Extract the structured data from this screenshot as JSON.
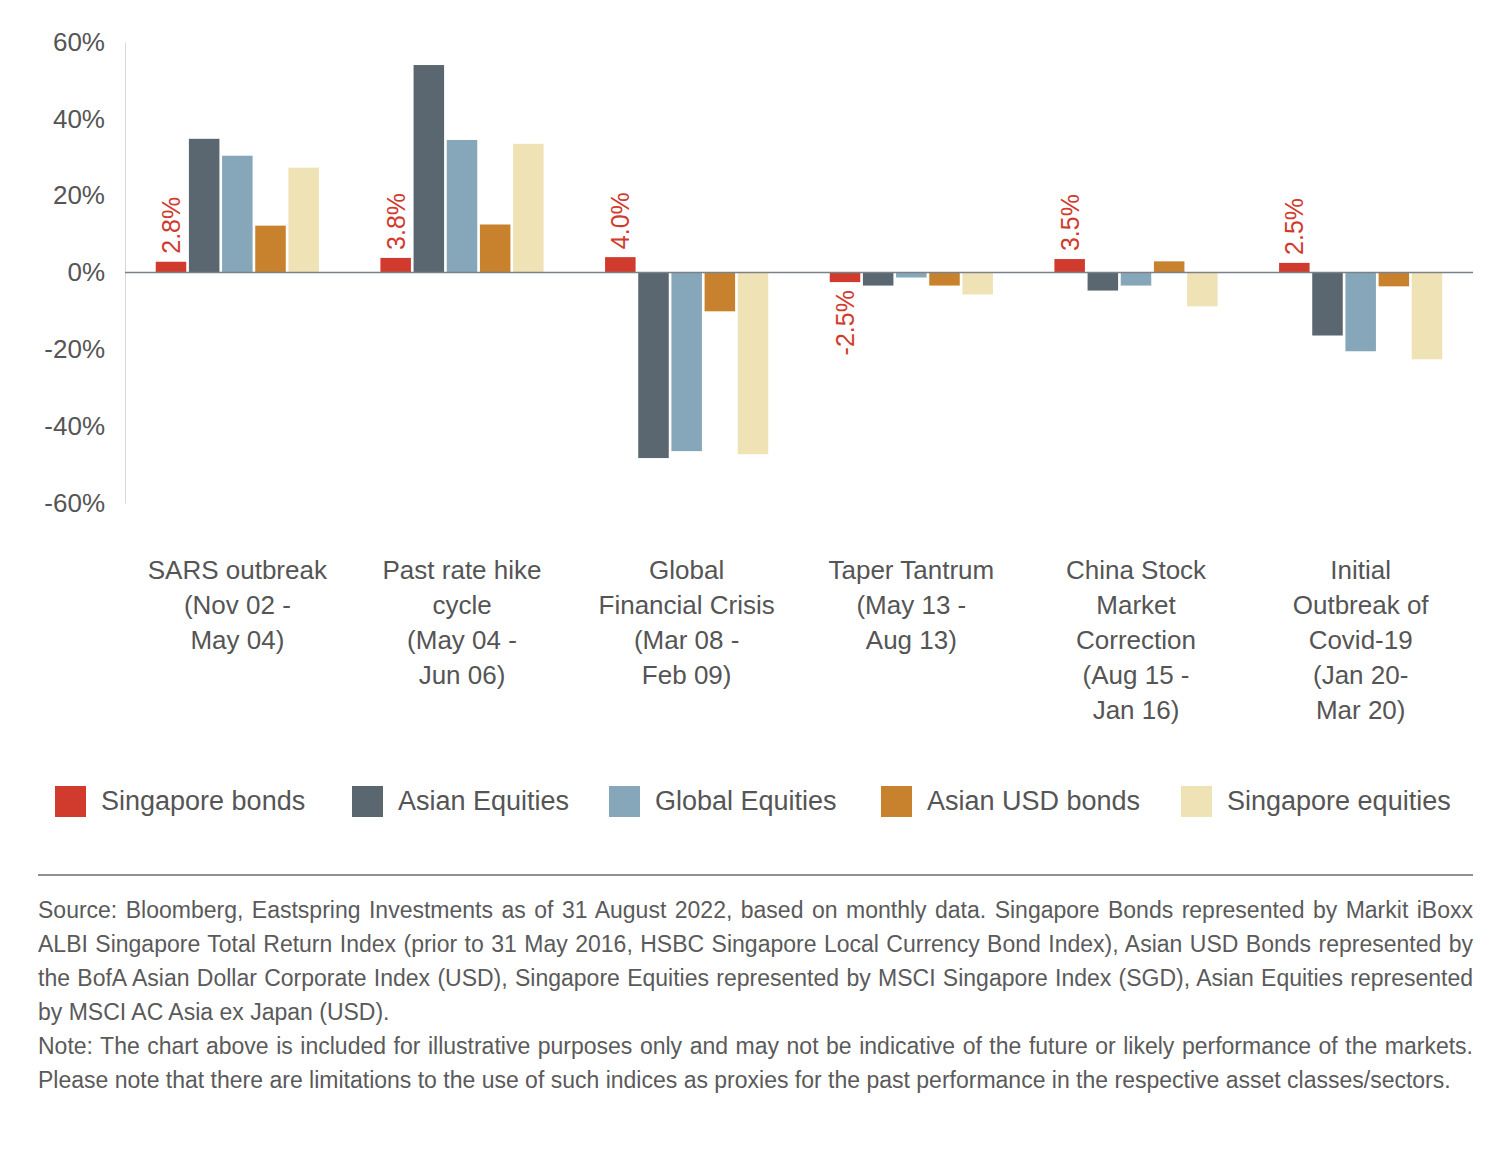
{
  "chart_data": {
    "type": "bar",
    "categories": [
      "SARS outbreak\n(Nov 02 -\nMay 04)",
      "Past rate hike\ncycle\n(May 04 -\nJun 06)",
      "Global\nFinancial Crisis\n(Mar 08 -\nFeb 09)",
      "Taper Tantrum\n(May 13 -\nAug 13)",
      "China Stock\nMarket\nCorrection\n(Aug 15 -\nJan 16)",
      "Initial\nOutbreak of\nCovid-19\n(Jan 20-\nMar 20)"
    ],
    "series": [
      {
        "name": "Singapore bonds",
        "color": "#d13b2e",
        "values": [
          2.8,
          3.8,
          4.0,
          -2.5,
          3.5,
          2.5
        ],
        "data_labels": true,
        "value_labels": [
          "2.8%",
          "3.8%",
          "4.0%",
          "-2.5%",
          "3.5%",
          "2.5%"
        ]
      },
      {
        "name": "Asian Equities",
        "color": "#5a6670",
        "values": [
          34.8,
          54.0,
          -48.3,
          -3.4,
          -4.7,
          -16.4
        ]
      },
      {
        "name": "Global Equities",
        "color": "#86a6b9",
        "values": [
          30.4,
          34.5,
          -46.5,
          -1.3,
          -3.4,
          -20.5
        ]
      },
      {
        "name": "Asian USD bonds",
        "color": "#c8822e",
        "values": [
          12.2,
          12.5,
          -10.1,
          -3.4,
          2.9,
          -3.6
        ]
      },
      {
        "name": "Singapore equities",
        "color": "#efe3b6",
        "values": [
          27.3,
          33.5,
          -47.3,
          -5.7,
          -8.8,
          -22.6
        ]
      }
    ],
    "ylim": [
      -60,
      60
    ],
    "yticks": [
      {
        "value": -60,
        "label": "-60%"
      },
      {
        "value": -40,
        "label": "-40%"
      },
      {
        "value": -20,
        "label": "-20%"
      },
      {
        "value": 0,
        "label": "0%"
      },
      {
        "value": 20,
        "label": "20%"
      },
      {
        "value": 40,
        "label": "40%"
      },
      {
        "value": 60,
        "label": "60%"
      }
    ],
    "grid": false,
    "legend": "bottom",
    "footnote": [
      "Source: Bloomberg, Eastspring Investments as of 31 August 2022, based on monthly data. Singapore Bonds represented by Markit iBoxx ALBI Singapore Total Return Index (prior to 31 May 2016, HSBC Singapore Local Currency Bond Index), Asian USD Bonds represented by the BofA Asian Dollar Corporate Index (USD), Singapore Equities represented by MSCI Singapore Index (SGD), Asian Equities represented by MSCI AC Asia ex Japan (USD).",
      "Note: The chart above is included for illustrative purposes only and may not be indicative of the future or likely performance of the markets. Please note that there are limitations to the use of such indices as proxies for the past performance in the respective asset classes/sectors."
    ]
  }
}
